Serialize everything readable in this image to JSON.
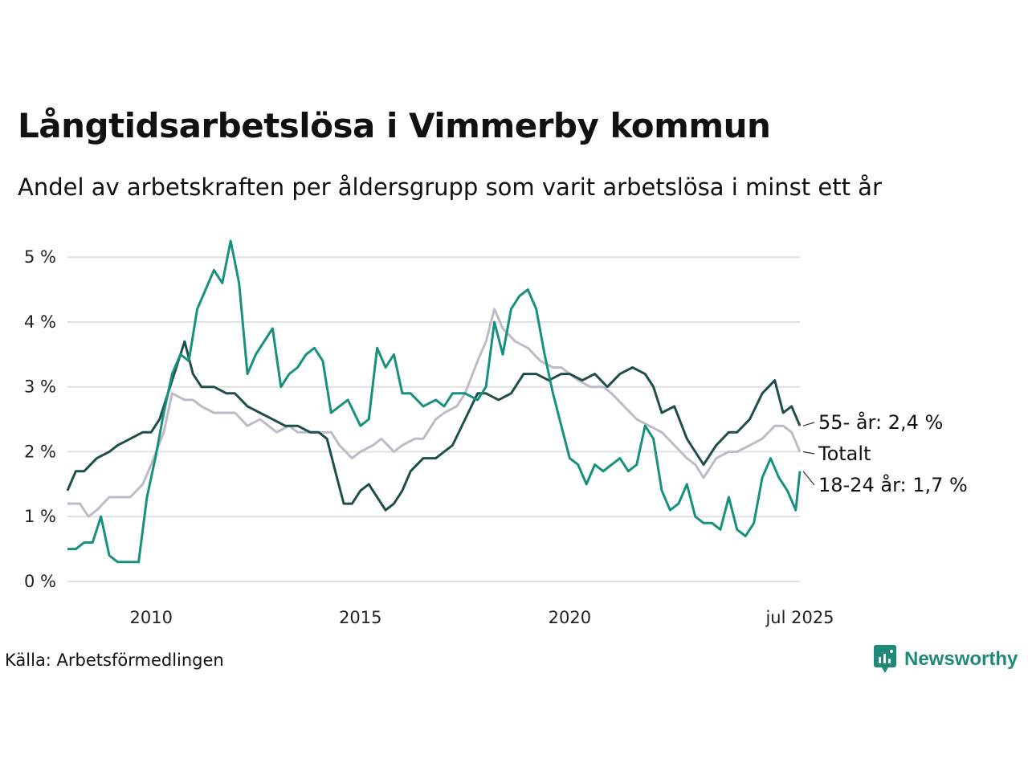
{
  "title": "Långtidsarbetslösa i Vimmerby kommun",
  "subtitle": "Andel av arbetskraften per åldersgrupp som varit arbetslösa i minst ett år",
  "source": "Källa: Arbetsförmedlingen",
  "logo": {
    "text": "Newsworthy",
    "icon": "newsworthy-logo-icon",
    "color": "#1f8a77"
  },
  "chart_data": {
    "type": "line",
    "ylim": [
      0,
      5.25
    ],
    "y_ticks": [
      0,
      1,
      2,
      3,
      4,
      5
    ],
    "y_tick_labels": [
      "0 %",
      "1 %",
      "2 %",
      "3 %",
      "4 %",
      "5 %"
    ],
    "x_range": [
      2008.0,
      2025.5
    ],
    "x_ticks": [
      2010,
      2015,
      2020,
      2025.5
    ],
    "x_tick_labels": [
      "2010",
      "2015",
      "2020",
      "jul 2025"
    ],
    "grid": true,
    "legend": "direct labels at line ends",
    "series": [
      {
        "name": "Totalt",
        "end_label": "Totalt",
        "color": "#bdbbc8",
        "points": [
          [
            2008.0,
            1.2
          ],
          [
            2008.3,
            1.2
          ],
          [
            2008.5,
            1.0
          ],
          [
            2008.7,
            1.1
          ],
          [
            2009.0,
            1.3
          ],
          [
            2009.2,
            1.3
          ],
          [
            2009.5,
            1.3
          ],
          [
            2009.8,
            1.5
          ],
          [
            2010.0,
            1.8
          ],
          [
            2010.3,
            2.3
          ],
          [
            2010.5,
            2.9
          ],
          [
            2010.8,
            2.8
          ],
          [
            2011.0,
            2.8
          ],
          [
            2011.2,
            2.7
          ],
          [
            2011.5,
            2.6
          ],
          [
            2011.8,
            2.6
          ],
          [
            2012.0,
            2.6
          ],
          [
            2012.3,
            2.4
          ],
          [
            2012.6,
            2.5
          ],
          [
            2013.0,
            2.3
          ],
          [
            2013.3,
            2.4
          ],
          [
            2013.5,
            2.3
          ],
          [
            2013.8,
            2.3
          ],
          [
            2014.0,
            2.3
          ],
          [
            2014.3,
            2.3
          ],
          [
            2014.5,
            2.1
          ],
          [
            2014.8,
            1.9
          ],
          [
            2015.0,
            2.0
          ],
          [
            2015.3,
            2.1
          ],
          [
            2015.5,
            2.2
          ],
          [
            2015.8,
            2.0
          ],
          [
            2016.0,
            2.1
          ],
          [
            2016.3,
            2.2
          ],
          [
            2016.5,
            2.2
          ],
          [
            2016.8,
            2.5
          ],
          [
            2017.0,
            2.6
          ],
          [
            2017.3,
            2.7
          ],
          [
            2017.5,
            2.9
          ],
          [
            2017.8,
            3.4
          ],
          [
            2018.0,
            3.7
          ],
          [
            2018.2,
            4.2
          ],
          [
            2018.4,
            3.9
          ],
          [
            2018.7,
            3.7
          ],
          [
            2019.0,
            3.6
          ],
          [
            2019.3,
            3.4
          ],
          [
            2019.6,
            3.3
          ],
          [
            2019.8,
            3.3
          ],
          [
            2020.0,
            3.2
          ],
          [
            2020.2,
            3.1
          ],
          [
            2020.5,
            3.0
          ],
          [
            2020.8,
            3.0
          ],
          [
            2021.0,
            2.9
          ],
          [
            2021.3,
            2.7
          ],
          [
            2021.6,
            2.5
          ],
          [
            2021.9,
            2.4
          ],
          [
            2022.2,
            2.3
          ],
          [
            2022.5,
            2.1
          ],
          [
            2022.8,
            1.9
          ],
          [
            2023.0,
            1.8
          ],
          [
            2023.2,
            1.6
          ],
          [
            2023.5,
            1.9
          ],
          [
            2023.8,
            2.0
          ],
          [
            2024.0,
            2.0
          ],
          [
            2024.3,
            2.1
          ],
          [
            2024.6,
            2.2
          ],
          [
            2024.9,
            2.4
          ],
          [
            2025.1,
            2.4
          ],
          [
            2025.3,
            2.3
          ],
          [
            2025.5,
            2.0
          ]
        ]
      },
      {
        "name": "55- år",
        "end_label": "55- år: 2,4 %",
        "color": "#1f4f4a",
        "points": [
          [
            2008.0,
            1.4
          ],
          [
            2008.2,
            1.7
          ],
          [
            2008.4,
            1.7
          ],
          [
            2008.7,
            1.9
          ],
          [
            2009.0,
            2.0
          ],
          [
            2009.2,
            2.1
          ],
          [
            2009.5,
            2.2
          ],
          [
            2009.8,
            2.3
          ],
          [
            2010.0,
            2.3
          ],
          [
            2010.2,
            2.5
          ],
          [
            2010.4,
            2.9
          ],
          [
            2010.6,
            3.3
          ],
          [
            2010.8,
            3.7
          ],
          [
            2011.0,
            3.2
          ],
          [
            2011.2,
            3.0
          ],
          [
            2011.5,
            3.0
          ],
          [
            2011.8,
            2.9
          ],
          [
            2012.0,
            2.9
          ],
          [
            2012.3,
            2.7
          ],
          [
            2012.6,
            2.6
          ],
          [
            2012.9,
            2.5
          ],
          [
            2013.2,
            2.4
          ],
          [
            2013.5,
            2.4
          ],
          [
            2013.8,
            2.3
          ],
          [
            2014.0,
            2.3
          ],
          [
            2014.2,
            2.2
          ],
          [
            2014.4,
            1.7
          ],
          [
            2014.6,
            1.2
          ],
          [
            2014.8,
            1.2
          ],
          [
            2015.0,
            1.4
          ],
          [
            2015.2,
            1.5
          ],
          [
            2015.4,
            1.3
          ],
          [
            2015.6,
            1.1
          ],
          [
            2015.8,
            1.2
          ],
          [
            2016.0,
            1.4
          ],
          [
            2016.2,
            1.7
          ],
          [
            2016.5,
            1.9
          ],
          [
            2016.8,
            1.9
          ],
          [
            2017.0,
            2.0
          ],
          [
            2017.2,
            2.1
          ],
          [
            2017.5,
            2.5
          ],
          [
            2017.8,
            2.9
          ],
          [
            2018.0,
            2.9
          ],
          [
            2018.3,
            2.8
          ],
          [
            2018.6,
            2.9
          ],
          [
            2018.9,
            3.2
          ],
          [
            2019.2,
            3.2
          ],
          [
            2019.5,
            3.1
          ],
          [
            2019.8,
            3.2
          ],
          [
            2020.0,
            3.2
          ],
          [
            2020.3,
            3.1
          ],
          [
            2020.6,
            3.2
          ],
          [
            2020.9,
            3.0
          ],
          [
            2021.2,
            3.2
          ],
          [
            2021.5,
            3.3
          ],
          [
            2021.8,
            3.2
          ],
          [
            2022.0,
            3.0
          ],
          [
            2022.2,
            2.6
          ],
          [
            2022.5,
            2.7
          ],
          [
            2022.8,
            2.2
          ],
          [
            2023.0,
            2.0
          ],
          [
            2023.2,
            1.8
          ],
          [
            2023.5,
            2.1
          ],
          [
            2023.8,
            2.3
          ],
          [
            2024.0,
            2.3
          ],
          [
            2024.3,
            2.5
          ],
          [
            2024.6,
            2.9
          ],
          [
            2024.9,
            3.1
          ],
          [
            2025.1,
            2.6
          ],
          [
            2025.3,
            2.7
          ],
          [
            2025.5,
            2.4
          ]
        ]
      },
      {
        "name": "18-24 år",
        "end_label": "18-24 år: 1,7 %",
        "color": "#17907d",
        "points": [
          [
            2008.0,
            0.5
          ],
          [
            2008.2,
            0.5
          ],
          [
            2008.4,
            0.6
          ],
          [
            2008.6,
            0.6
          ],
          [
            2008.8,
            1.0
          ],
          [
            2009.0,
            0.4
          ],
          [
            2009.2,
            0.3
          ],
          [
            2009.5,
            0.3
          ],
          [
            2009.7,
            0.3
          ],
          [
            2009.9,
            1.3
          ],
          [
            2010.1,
            1.9
          ],
          [
            2010.3,
            2.6
          ],
          [
            2010.5,
            3.2
          ],
          [
            2010.7,
            3.5
          ],
          [
            2010.9,
            3.4
          ],
          [
            2011.1,
            4.2
          ],
          [
            2011.3,
            4.5
          ],
          [
            2011.5,
            4.8
          ],
          [
            2011.7,
            4.6
          ],
          [
            2011.9,
            5.25
          ],
          [
            2012.1,
            4.6
          ],
          [
            2012.3,
            3.2
          ],
          [
            2012.5,
            3.5
          ],
          [
            2012.7,
            3.7
          ],
          [
            2012.9,
            3.9
          ],
          [
            2013.1,
            3.0
          ],
          [
            2013.3,
            3.2
          ],
          [
            2013.5,
            3.3
          ],
          [
            2013.7,
            3.5
          ],
          [
            2013.9,
            3.6
          ],
          [
            2014.1,
            3.4
          ],
          [
            2014.3,
            2.6
          ],
          [
            2014.5,
            2.7
          ],
          [
            2014.7,
            2.8
          ],
          [
            2015.0,
            2.4
          ],
          [
            2015.2,
            2.5
          ],
          [
            2015.4,
            3.6
          ],
          [
            2015.6,
            3.3
          ],
          [
            2015.8,
            3.5
          ],
          [
            2016.0,
            2.9
          ],
          [
            2016.2,
            2.9
          ],
          [
            2016.5,
            2.7
          ],
          [
            2016.8,
            2.8
          ],
          [
            2017.0,
            2.7
          ],
          [
            2017.2,
            2.9
          ],
          [
            2017.5,
            2.9
          ],
          [
            2017.8,
            2.8
          ],
          [
            2018.0,
            3.0
          ],
          [
            2018.2,
            4.0
          ],
          [
            2018.4,
            3.5
          ],
          [
            2018.6,
            4.2
          ],
          [
            2018.8,
            4.4
          ],
          [
            2019.0,
            4.5
          ],
          [
            2019.2,
            4.2
          ],
          [
            2019.4,
            3.5
          ],
          [
            2019.6,
            2.9
          ],
          [
            2019.8,
            2.4
          ],
          [
            2020.0,
            1.9
          ],
          [
            2020.2,
            1.8
          ],
          [
            2020.4,
            1.5
          ],
          [
            2020.6,
            1.8
          ],
          [
            2020.8,
            1.7
          ],
          [
            2021.0,
            1.8
          ],
          [
            2021.2,
            1.9
          ],
          [
            2021.4,
            1.7
          ],
          [
            2021.6,
            1.8
          ],
          [
            2021.8,
            2.4
          ],
          [
            2022.0,
            2.2
          ],
          [
            2022.2,
            1.4
          ],
          [
            2022.4,
            1.1
          ],
          [
            2022.6,
            1.2
          ],
          [
            2022.8,
            1.5
          ],
          [
            2023.0,
            1.0
          ],
          [
            2023.2,
            0.9
          ],
          [
            2023.4,
            0.9
          ],
          [
            2023.6,
            0.8
          ],
          [
            2023.8,
            1.3
          ],
          [
            2024.0,
            0.8
          ],
          [
            2024.2,
            0.7
          ],
          [
            2024.4,
            0.9
          ],
          [
            2024.6,
            1.6
          ],
          [
            2024.8,
            1.9
          ],
          [
            2025.0,
            1.6
          ],
          [
            2025.2,
            1.4
          ],
          [
            2025.4,
            1.1
          ],
          [
            2025.5,
            1.7
          ]
        ]
      }
    ]
  }
}
